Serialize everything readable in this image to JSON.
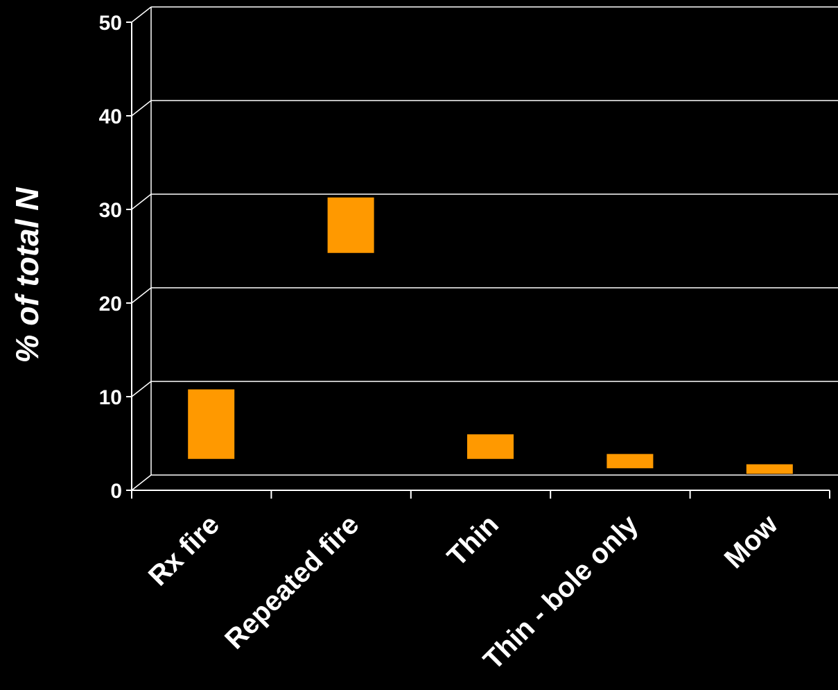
{
  "chart_data": {
    "type": "bar",
    "subtype": "floating-range",
    "ylabel": "% of total N",
    "ylim": [
      0,
      50
    ],
    "yticks": [
      "0",
      "10",
      "20",
      "30",
      "40",
      "50"
    ],
    "grid": true,
    "categories": [
      "Rx fire",
      "Repeated fire",
      "Thin",
      "Thin - bole only",
      "Mow"
    ],
    "ranges": [
      [
        2.5,
        10
      ],
      [
        24.5,
        30.5
      ],
      [
        2.5,
        5.2
      ],
      [
        1.5,
        3.1
      ],
      [
        0.9,
        2.0
      ]
    ],
    "colors": {
      "bar": "#FF9900",
      "background": "#000000",
      "text": "#FFFFFF",
      "grid": "#FFFFFF"
    }
  }
}
